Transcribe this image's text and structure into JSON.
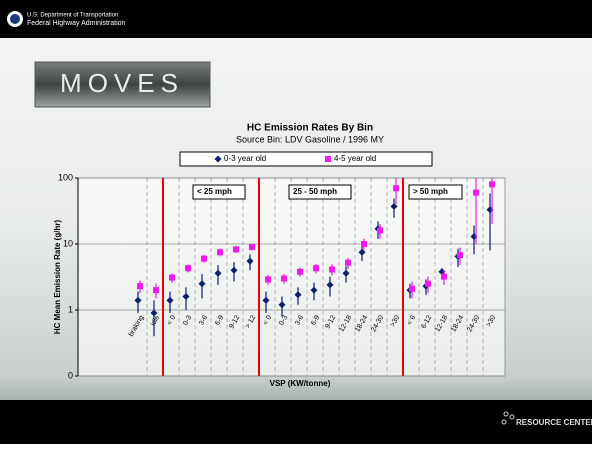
{
  "slide": {
    "agency_line1": "U.S. Department of Transportation",
    "agency_line2": "Federal Highway Administration",
    "logo": "MOVES",
    "footer": "RESOURCE CENTER"
  },
  "chart_data": {
    "type": "scatter",
    "title": "HC Emission Rates By Bin",
    "subtitle": "Source Bin: LDV Gasoline / 1996 MY",
    "x_label": "VSP (KW/tonne)",
    "y_label": "HC Mean Emission Rate (g/hr)",
    "categories": [
      "braking",
      "idle",
      "< 0",
      "0-3",
      "3-6",
      "6-9",
      "9-12",
      "> 12",
      "< 0",
      "0-3",
      "3-6",
      "6-9",
      "9-12",
      "12-18",
      "18-24",
      "24-30",
      ">30",
      "< 6",
      "6-12",
      "12-18",
      "18-24",
      "24-30",
      ">30"
    ],
    "annotations": [
      "< 25 mph",
      "25 - 50 mph",
      "> 50 mph"
    ],
    "log_scale": true,
    "ylim": [
      0.1,
      100
    ],
    "yticks": [
      {
        "value": 0.1,
        "label": "0"
      },
      1,
      10,
      100
    ],
    "grid": true,
    "series": [
      {
        "name": "0-3 year old",
        "color": "#0a1f6e",
        "marker": "diamond",
        "values": [
          1.4,
          0.9,
          1.4,
          1.6,
          2.5,
          3.6,
          4,
          5.5,
          1.4,
          1.2,
          1.7,
          2,
          2.4,
          3.6,
          7.5,
          17,
          37,
          2,
          2.3,
          3.8,
          6.5,
          13,
          33
        ],
        "errors": [
          0.5,
          0.5,
          0.5,
          0.6,
          1,
          1.2,
          1.3,
          1.5,
          0.5,
          0.4,
          0.5,
          0.6,
          0.8,
          1,
          2,
          5,
          12,
          0.5,
          0.6,
          0.5,
          2,
          6,
          25
        ]
      },
      {
        "name": "4-5 year old",
        "color": "#ee1aee",
        "marker": "square",
        "values": [
          2.3,
          2,
          3.1,
          4.3,
          6,
          7.5,
          8.3,
          9,
          2.9,
          3,
          3.8,
          4.3,
          4.1,
          5.2,
          10,
          16,
          70,
          2.1,
          2.5,
          3.2,
          6.8,
          60,
          80
        ],
        "errors": [
          0.5,
          0.5,
          0.5,
          0.6,
          0.8,
          1,
          1,
          1,
          0.5,
          0.5,
          0.6,
          0.7,
          0.8,
          1,
          2,
          4,
          30,
          0.6,
          0.7,
          0.8,
          2,
          50,
          60
        ]
      }
    ]
  }
}
